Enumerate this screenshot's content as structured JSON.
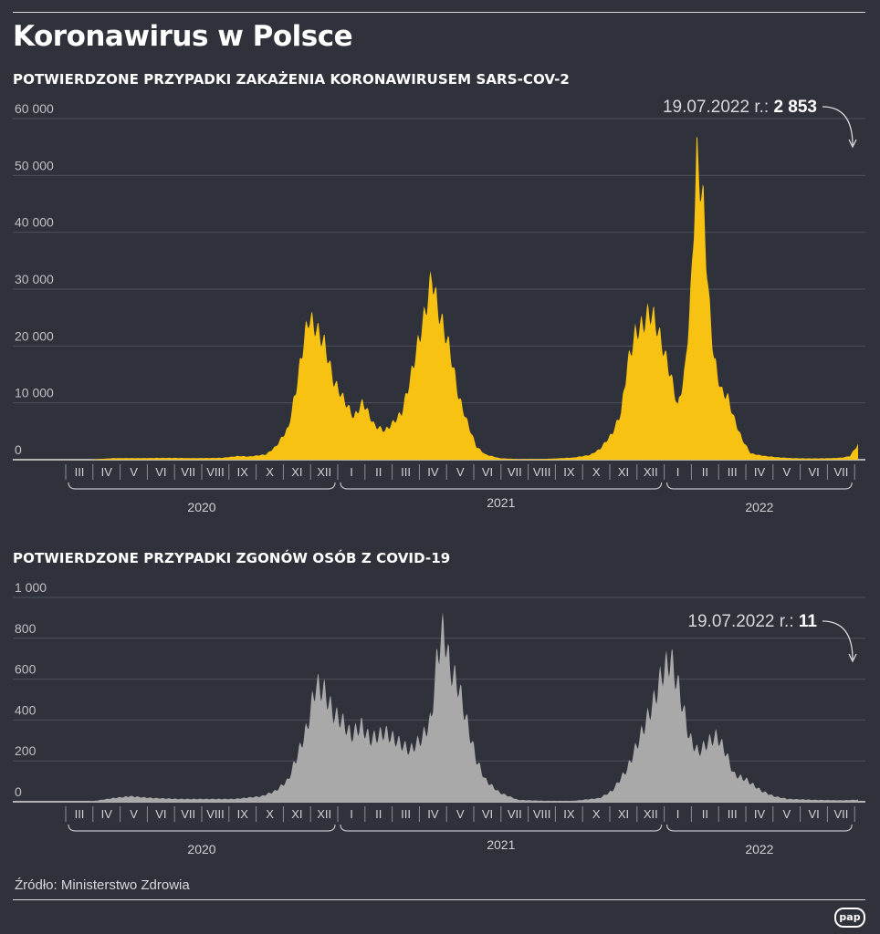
{
  "title": "Koronawirus w Polsce",
  "source": "Źródło: Ministerstwo Zdrowia",
  "logo_text": "pap",
  "colors": {
    "background": "#2f323b",
    "cases": "#f8c212",
    "deaths": "#a9a9a9"
  },
  "chart_data": [
    {
      "type": "area",
      "title": "POTWIERDZONE PRZYPADKI ZAKAŻENIA KORONAWIRUSEM SARS-COV-2",
      "ylim": [
        0,
        60000
      ],
      "yticks": [
        0,
        10000,
        20000,
        30000,
        40000,
        50000,
        60000
      ],
      "ytick_labels": [
        "0",
        "10 000",
        "20 000",
        "30 000",
        "40 000",
        "50 000",
        "60 000"
      ],
      "grid": true,
      "x_range": [
        "2020-03-04",
        "2022-07-19"
      ],
      "months": [
        "III",
        "IV",
        "V",
        "VI",
        "VII",
        "VIII",
        "IX",
        "X",
        "XI",
        "XII",
        "I",
        "II",
        "III",
        "IV",
        "V",
        "VI",
        "VII",
        "VIII",
        "IX",
        "X",
        "XI",
        "XII",
        "I",
        "II",
        "III",
        "IV",
        "V",
        "VI",
        "VII"
      ],
      "years": [
        "2020",
        "2021",
        "2022"
      ],
      "annotation": {
        "prefix": "19.07.2022 r.: ",
        "value": "2 853"
      },
      "x": [
        "2020-03-04",
        "2020-04-01",
        "2020-05-01",
        "2020-06-01",
        "2020-07-01",
        "2020-08-01",
        "2020-08-20",
        "2020-09-01",
        "2020-09-20",
        "2020-10-01",
        "2020-10-15",
        "2020-10-24",
        "2020-11-01",
        "2020-11-07",
        "2020-11-15",
        "2020-11-25",
        "2020-12-05",
        "2020-12-15",
        "2020-12-28",
        "2021-01-07",
        "2021-01-20",
        "2021-02-01",
        "2021-02-10",
        "2021-02-20",
        "2021-03-01",
        "2021-03-10",
        "2021-03-17",
        "2021-03-26",
        "2021-04-01",
        "2021-04-08",
        "2021-04-15",
        "2021-04-25",
        "2021-05-05",
        "2021-05-15",
        "2021-05-25",
        "2021-06-10",
        "2021-07-01",
        "2021-08-01",
        "2021-09-01",
        "2021-09-20",
        "2021-10-01",
        "2021-10-15",
        "2021-10-25",
        "2021-11-01",
        "2021-11-10",
        "2021-11-20",
        "2021-11-25",
        "2021-12-01",
        "2021-12-10",
        "2021-12-20",
        "2021-12-28",
        "2022-01-05",
        "2022-01-12",
        "2022-01-18",
        "2022-01-26",
        "2022-02-01",
        "2022-02-07",
        "2022-02-15",
        "2022-02-22",
        "2022-03-01",
        "2022-03-10",
        "2022-03-20",
        "2022-03-29",
        "2022-04-05",
        "2022-04-20",
        "2022-05-05",
        "2022-05-20",
        "2022-06-05",
        "2022-06-20",
        "2022-07-01",
        "2022-07-10",
        "2022-07-15",
        "2022-07-19"
      ],
      "values": [
        0,
        300,
        300,
        350,
        300,
        350,
        700,
        600,
        1000,
        2500,
        6000,
        13600,
        22000,
        27000,
        25000,
        22000,
        15000,
        12000,
        8000,
        11000,
        6500,
        5500,
        7000,
        9000,
        15000,
        22000,
        27000,
        35000,
        29000,
        25000,
        21000,
        12000,
        7000,
        2500,
        1000,
        300,
        100,
        150,
        400,
        900,
        2000,
        5000,
        9000,
        18000,
        24000,
        26000,
        28000,
        27000,
        22000,
        16000,
        10000,
        17000,
        33000,
        57800,
        48000,
        30000,
        19000,
        13000,
        12000,
        8000,
        4000,
        1200,
        900,
        700,
        450,
        300,
        250,
        250,
        300,
        400,
        700,
        2000,
        2853
      ]
    },
    {
      "type": "area",
      "title": "POTWIERDZONE PRZYPADKI ZGONÓW OSÓB Z COVID-19",
      "ylim": [
        0,
        1000
      ],
      "yticks": [
        0,
        200,
        400,
        600,
        800,
        1000
      ],
      "ytick_labels": [
        "0",
        "200",
        "400",
        "600",
        "800",
        "1 000"
      ],
      "grid": true,
      "x_range": [
        "2020-03-04",
        "2022-07-19"
      ],
      "months": [
        "III",
        "IV",
        "V",
        "VI",
        "VII",
        "VIII",
        "IX",
        "X",
        "XI",
        "XII",
        "I",
        "II",
        "III",
        "IV",
        "V",
        "VI",
        "VII",
        "VIII",
        "IX",
        "X",
        "XI",
        "XII",
        "I",
        "II",
        "III",
        "IV",
        "V",
        "VI",
        "VII"
      ],
      "years": [
        "2020",
        "2021",
        "2022"
      ],
      "annotation": {
        "prefix": "19.07.2022 r.: ",
        "value": "11"
      },
      "x": [
        "2020-03-04",
        "2020-04-01",
        "2020-04-20",
        "2020-05-15",
        "2020-06-15",
        "2020-07-15",
        "2020-08-15",
        "2020-09-15",
        "2020-10-01",
        "2020-10-15",
        "2020-10-25",
        "2020-11-05",
        "2020-11-15",
        "2020-11-25",
        "2020-12-05",
        "2020-12-15",
        "2020-12-25",
        "2021-01-05",
        "2021-01-15",
        "2021-02-01",
        "2021-02-15",
        "2021-03-01",
        "2021-03-15",
        "2021-03-25",
        "2021-04-01",
        "2021-04-08",
        "2021-04-15",
        "2021-04-25",
        "2021-05-05",
        "2021-05-15",
        "2021-05-25",
        "2021-06-10",
        "2021-07-01",
        "2021-08-01",
        "2021-09-01",
        "2021-10-01",
        "2021-10-15",
        "2021-11-01",
        "2021-11-15",
        "2021-12-01",
        "2021-12-10",
        "2021-12-20",
        "2021-12-30",
        "2022-01-10",
        "2022-01-20",
        "2022-02-01",
        "2022-02-10",
        "2022-02-20",
        "2022-03-01",
        "2022-03-15",
        "2022-04-01",
        "2022-04-15",
        "2022-05-01",
        "2022-06-01",
        "2022-07-01",
        "2022-07-19"
      ],
      "values": [
        0,
        20,
        30,
        20,
        15,
        15,
        15,
        30,
        60,
        120,
        250,
        400,
        640,
        600,
        480,
        440,
        360,
        420,
        340,
        380,
        330,
        280,
        350,
        450,
        800,
        950,
        730,
        630,
        420,
        230,
        120,
        50,
        10,
        5,
        5,
        20,
        60,
        180,
        350,
        550,
        700,
        780,
        600,
        350,
        270,
        330,
        360,
        270,
        150,
        120,
        60,
        30,
        15,
        10,
        8,
        11
      ]
    }
  ]
}
